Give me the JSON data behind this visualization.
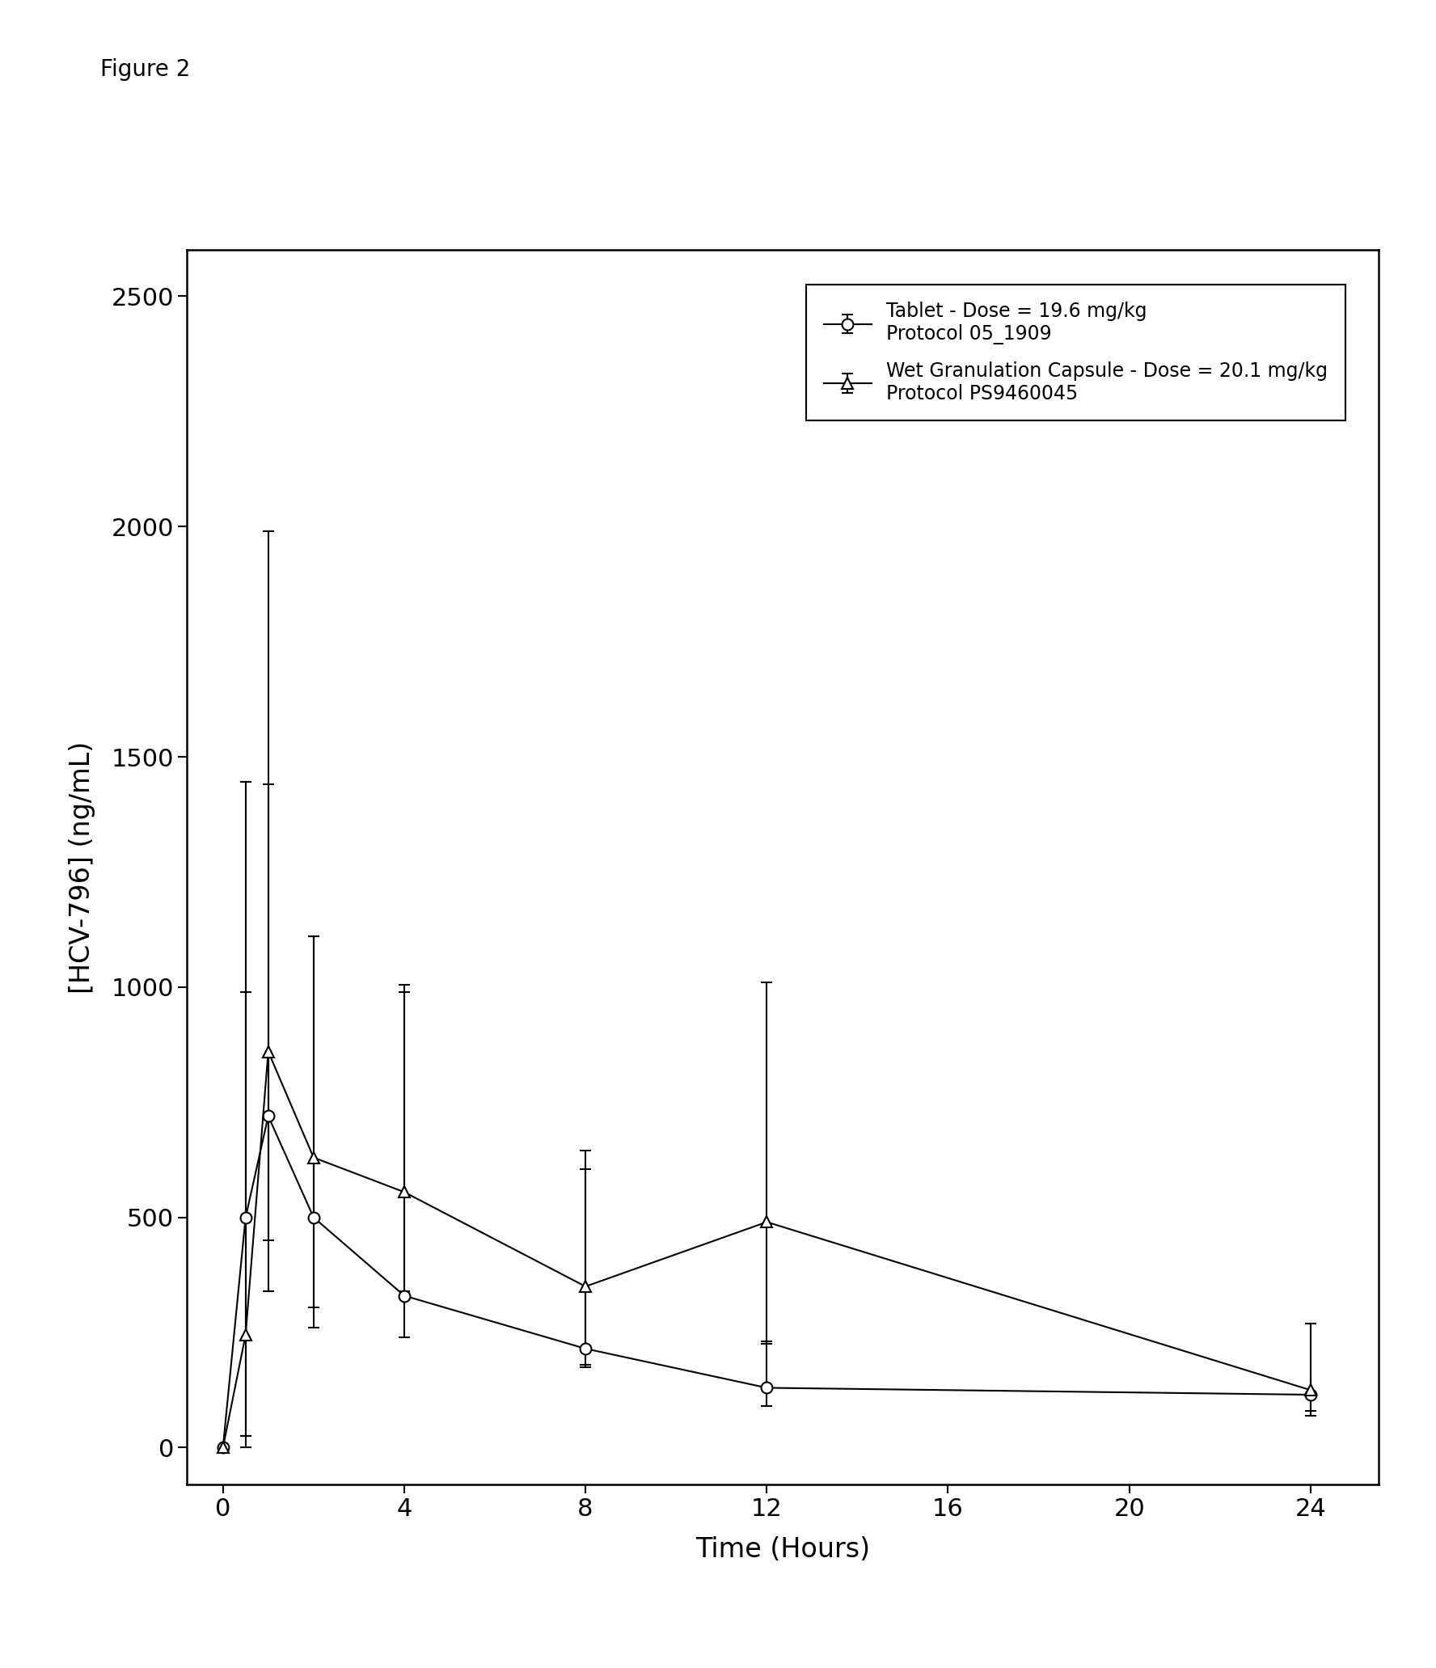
{
  "title": "Figure 2",
  "xlabel": "Time (Hours)",
  "ylabel": "[HCV-796] (ng/mL)",
  "xlim": [
    -0.8,
    25.5
  ],
  "ylim": [
    -80,
    2600
  ],
  "xticks": [
    0,
    4,
    8,
    12,
    16,
    20,
    24
  ],
  "yticks": [
    0,
    500,
    1000,
    1500,
    2000,
    2500
  ],
  "series1": {
    "label1": "Tablet - Dose = 19.6 mg/kg",
    "label2": "Protocol 05_1909",
    "x": [
      0,
      0.5,
      1,
      2,
      4,
      8,
      12,
      24
    ],
    "y": [
      0,
      500,
      720,
      500,
      330,
      215,
      130,
      115
    ],
    "yerr_low": [
      0,
      500,
      270,
      195,
      90,
      35,
      40,
      35
    ],
    "yerr_high": [
      0,
      490,
      1270,
      610,
      660,
      430,
      100,
      155
    ],
    "marker": "o",
    "color": "black",
    "markersize": 10,
    "markerfacecolor": "white"
  },
  "series2": {
    "label1": "Wet Granulation Capsule - Dose = 20.1 mg/kg",
    "label2": "Protocol PS9460045",
    "x": [
      0,
      0.5,
      1,
      2,
      4,
      8,
      12,
      24
    ],
    "y": [
      0,
      245,
      860,
      630,
      555,
      350,
      490,
      125
    ],
    "yerr_low": [
      0,
      220,
      520,
      370,
      215,
      175,
      265,
      55
    ],
    "yerr_high": [
      0,
      1200,
      580,
      480,
      450,
      255,
      520,
      145
    ],
    "marker": "^",
    "color": "black",
    "markersize": 10,
    "markerfacecolor": "white"
  },
  "background_color": "white",
  "figure_width": 17.76,
  "figure_height": 20.63,
  "dpi": 100
}
